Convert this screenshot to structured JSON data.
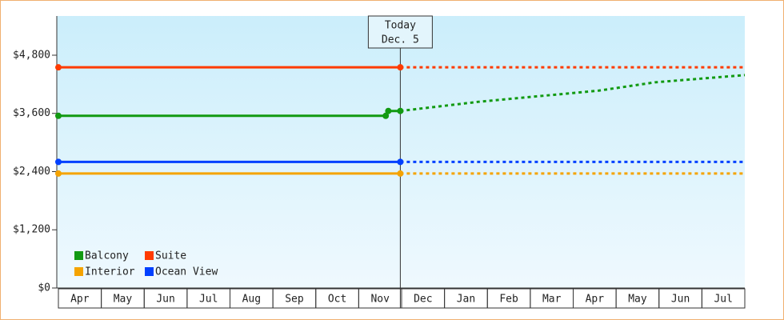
{
  "chart_data": {
    "type": "line",
    "categories": [
      "Apr",
      "May",
      "Jun",
      "Jul",
      "Aug",
      "Sep",
      "Oct",
      "Nov",
      "Dec",
      "Jan",
      "Feb",
      "Mar",
      "Apr",
      "May",
      "Jun",
      "Jul"
    ],
    "xlim": [
      0,
      16
    ],
    "ylim": [
      0,
      5608
    ],
    "yticks": [
      {
        "value": 0,
        "label": "$0"
      },
      {
        "value": 1200,
        "label": "$1,200"
      },
      {
        "value": 2400,
        "label": "$2,400"
      },
      {
        "value": 3600,
        "label": "$3,600"
      },
      {
        "value": 4800,
        "label": "$4,800"
      }
    ],
    "today_x": 7.97,
    "today_label": [
      "Today",
      "Dec. 5"
    ],
    "legend": "lower left",
    "series": [
      {
        "name": "Balcony",
        "color": "#129a12",
        "x": [
          0,
          7.63,
          7.69,
          7.97,
          9.8,
          12.6,
          13.9,
          16
        ],
        "values": [
          3550,
          3550,
          3650,
          3650,
          3840,
          4070,
          4240,
          4390
        ]
      },
      {
        "name": "Suite",
        "color": "#ff3b00",
        "x": [
          0,
          7.97,
          16
        ],
        "values": [
          4550,
          4550,
          4550
        ]
      },
      {
        "name": "Interior",
        "color": "#f5a300",
        "x": [
          0,
          7.97,
          16
        ],
        "values": [
          2360,
          2360,
          2360
        ]
      },
      {
        "name": "Ocean View",
        "color": "#0040ff",
        "x": [
          0,
          7.97,
          16
        ],
        "values": [
          2600,
          2600,
          2600
        ]
      }
    ]
  }
}
